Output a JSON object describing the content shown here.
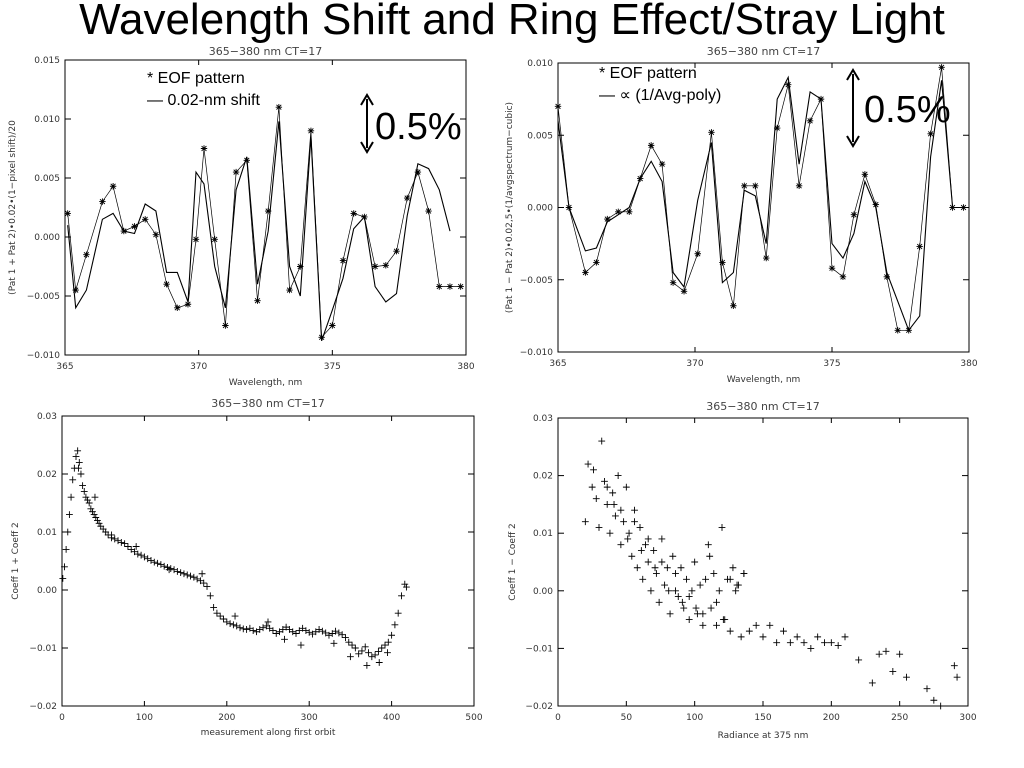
{
  "slide": {
    "title": "Wavelength Shift and Ring Effect/Stray Light"
  },
  "chart_data": [
    {
      "type": "line",
      "title": "365−380 nm CT=17",
      "xlabel": "Wavelength, nm",
      "ylabel": "(Pat 1 + Pat 2)•0.02•(1−pixel shift)/20",
      "xlim": [
        365,
        380
      ],
      "ylim": [
        -0.01,
        0.015
      ],
      "xticks": [
        365,
        370,
        375,
        380
      ],
      "yticks": [
        -0.01,
        -0.005,
        0,
        0.005,
        0.01,
        0.015
      ],
      "xtick_labels": [
        "365",
        "370",
        "375",
        "380"
      ],
      "ytick_labels": [
        "−0.010",
        "−0.005",
        "0.000",
        "0.005",
        "0.010",
        "0.015"
      ],
      "annotations": [
        "* EOF pattern",
        "— 0.02-nm shift"
      ],
      "scale_label": "0.5%",
      "series": [
        {
          "name": "EOF pattern",
          "marker": "asterisk",
          "x": [
            365.1,
            365.4,
            365.8,
            366.4,
            366.8,
            367.2,
            367.6,
            368.0,
            368.4,
            368.8,
            369.2,
            369.6,
            369.9,
            370.2,
            370.6,
            371.0,
            371.4,
            371.8,
            372.2,
            372.6,
            373.0,
            373.4,
            373.8,
            374.2,
            374.6,
            375.0,
            375.4,
            375.8,
            376.2,
            376.6,
            377.0,
            377.4,
            377.8,
            378.2,
            378.6,
            379.0,
            379.4,
            379.8
          ],
          "y": [
            0.002,
            -0.0045,
            -0.0015,
            0.003,
            0.0043,
            0.0005,
            0.0009,
            0.0015,
            0.0002,
            -0.004,
            -0.006,
            -0.0057,
            -0.0002,
            0.0075,
            -0.0002,
            -0.0075,
            0.0055,
            0.0065,
            -0.0054,
            0.0022,
            0.011,
            -0.0045,
            -0.0025,
            0.009,
            -0.0085,
            -0.0075,
            -0.002,
            0.002,
            0.0017,
            -0.0025,
            -0.0024,
            -0.0012,
            0.0033,
            0.0055,
            0.0022,
            -0.0042,
            -0.0042,
            -0.0042
          ]
        },
        {
          "name": "0.02-nm shift",
          "marker": "none",
          "x": [
            365.1,
            365.4,
            365.8,
            366.4,
            366.8,
            367.2,
            367.6,
            368.0,
            368.4,
            368.8,
            369.2,
            369.6,
            369.9,
            370.2,
            370.6,
            371.0,
            371.4,
            371.8,
            372.2,
            372.6,
            373.0,
            373.4,
            373.8,
            374.2,
            374.6,
            375.0,
            375.4,
            375.8,
            376.2,
            376.6,
            377.0,
            377.4,
            377.8,
            378.2,
            378.6,
            379.0,
            379.4
          ],
          "y": [
            0.001,
            -0.006,
            -0.0045,
            0.0015,
            0.002,
            0.0005,
            0.0003,
            0.0028,
            0.0022,
            -0.003,
            -0.003,
            -0.0055,
            0.0055,
            0.0045,
            -0.0025,
            -0.006,
            0.004,
            0.0068,
            -0.004,
            0.0005,
            0.0098,
            -0.0025,
            -0.005,
            0.0085,
            -0.0088,
            -0.0062,
            -0.0035,
            0.0007,
            0.0017,
            -0.0042,
            -0.0055,
            -0.0048,
            0.0018,
            0.0062,
            0.0058,
            0.004,
            0.0005
          ]
        }
      ]
    },
    {
      "type": "line",
      "title": "365−380 nm CT=17",
      "xlabel": "Wavelength, nm",
      "ylabel": "(Pat 1 − Pat 2)•0.02,5•(1/avgspectrum−cubic)",
      "xlim": [
        365,
        380
      ],
      "ylim": [
        -0.01,
        0.01
      ],
      "xticks": [
        365,
        370,
        375,
        380
      ],
      "yticks": [
        -0.01,
        -0.005,
        0,
        0.005,
        0.01
      ],
      "xtick_labels": [
        "365",
        "370",
        "375",
        "380"
      ],
      "ytick_labels": [
        "−0.010",
        "−0.005",
        "0.000",
        "0.005",
        "0.010"
      ],
      "annotations": [
        "* EOF pattern",
        "— ∝ (1/Avg-poly)"
      ],
      "scale_label": "0.5%",
      "series": [
        {
          "name": "EOF pattern",
          "marker": "asterisk",
          "x": [
            365.0,
            365.4,
            366.0,
            366.4,
            366.8,
            367.2,
            367.6,
            368.0,
            368.4,
            368.8,
            369.2,
            369.6,
            370.1,
            370.6,
            371.0,
            371.4,
            371.8,
            372.2,
            372.6,
            373.0,
            373.4,
            373.8,
            374.2,
            374.6,
            375.0,
            375.4,
            375.8,
            376.2,
            376.6,
            377.0,
            377.4,
            377.8,
            378.2,
            378.6,
            379.0,
            379.4,
            379.8
          ],
          "y": [
            0.007,
            0.0,
            -0.0045,
            -0.0038,
            -0.0008,
            -0.0003,
            -0.0003,
            0.002,
            0.0043,
            0.003,
            -0.0052,
            -0.0058,
            -0.0032,
            0.0052,
            -0.0038,
            -0.0068,
            0.0015,
            0.0015,
            -0.0035,
            0.0055,
            0.0085,
            0.0015,
            0.006,
            0.0075,
            -0.0042,
            -0.0048,
            -0.0005,
            0.0023,
            0.0002,
            -0.0048,
            -0.0085,
            -0.0085,
            -0.0027,
            0.0051,
            0.0097,
            0.0,
            0.0
          ]
        },
        {
          "name": "∝ (1/Avg-poly)",
          "marker": "none",
          "x": [
            365.0,
            365.4,
            366.0,
            366.4,
            366.8,
            367.2,
            367.6,
            368.0,
            368.4,
            368.8,
            369.2,
            369.6,
            370.1,
            370.6,
            371.0,
            371.4,
            371.8,
            372.2,
            372.6,
            373.0,
            373.4,
            373.8,
            374.2,
            374.6,
            375.0,
            375.4,
            375.8,
            376.2,
            376.6,
            377.0,
            377.4,
            377.8,
            378.2,
            378.6,
            379.0,
            379.4,
            379.8
          ],
          "y": [
            0.006,
            0.0,
            -0.003,
            -0.0028,
            -0.001,
            -0.0005,
            0.0,
            0.002,
            0.0032,
            0.0018,
            -0.0045,
            -0.0055,
            0.0005,
            0.0045,
            -0.0052,
            -0.0045,
            0.0012,
            0.0008,
            -0.0025,
            0.0075,
            0.009,
            0.003,
            0.008,
            0.0075,
            -0.0025,
            -0.0035,
            -0.0018,
            0.0018,
            0.0,
            -0.0045,
            -0.0065,
            -0.0085,
            -0.0075,
            0.0035,
            0.0088,
            0.0,
            0.0
          ]
        }
      ]
    },
    {
      "type": "scatter",
      "title": "365−380 nm CT=17",
      "xlabel": "measurement along first orbit",
      "ylabel": "Coeff 1 + Coeff 2",
      "xlim": [
        0,
        500
      ],
      "ylim": [
        -0.02,
        0.03
      ],
      "xticks": [
        0,
        100,
        200,
        300,
        400,
        500
      ],
      "yticks": [
        -0.02,
        -0.01,
        0,
        0.01,
        0.02,
        0.03
      ],
      "xtick_labels": [
        "0",
        "100",
        "200",
        "300",
        "400",
        "500"
      ],
      "ytick_labels": [
        "−0.02",
        "−0.01",
        "0.00",
        "0.01",
        "0.02",
        "0.03"
      ],
      "series": [
        {
          "name": "",
          "marker": "plus",
          "x": [
            1,
            3,
            5,
            7,
            9,
            11,
            13,
            15,
            17,
            19,
            21,
            23,
            25,
            27,
            29,
            31,
            33,
            35,
            37,
            39,
            41,
            43,
            45,
            47,
            50,
            53,
            56,
            60,
            64,
            68,
            72,
            76,
            80,
            84,
            88,
            92,
            96,
            100,
            104,
            108,
            112,
            116,
            120,
            124,
            128,
            132,
            136,
            140,
            144,
            148,
            152,
            156,
            160,
            164,
            168,
            172,
            176,
            180,
            184,
            188,
            192,
            196,
            200,
            204,
            208,
            212,
            216,
            220,
            224,
            228,
            232,
            236,
            240,
            244,
            248,
            252,
            256,
            260,
            264,
            268,
            272,
            276,
            280,
            284,
            288,
            292,
            296,
            300,
            304,
            308,
            312,
            316,
            320,
            324,
            328,
            332,
            336,
            340,
            344,
            348,
            352,
            356,
            360,
            364,
            368,
            372,
            376,
            380,
            384,
            388,
            392,
            396,
            400,
            404,
            408,
            412,
            416,
            418,
            20,
            40,
            60,
            90,
            130,
            170,
            210,
            250,
            270,
            290,
            330,
            350,
            370,
            385,
            395
          ],
          "y": [
            0.002,
            0.004,
            0.007,
            0.01,
            0.013,
            0.016,
            0.019,
            0.021,
            0.023,
            0.024,
            0.022,
            0.02,
            0.018,
            0.017,
            0.016,
            0.0155,
            0.015,
            0.014,
            0.0135,
            0.013,
            0.0125,
            0.012,
            0.0115,
            0.011,
            0.0105,
            0.01,
            0.0095,
            0.009,
            0.0088,
            0.0085,
            0.0082,
            0.008,
            0.0075,
            0.007,
            0.0066,
            0.0062,
            0.006,
            0.0057,
            0.0054,
            0.0051,
            0.0048,
            0.0046,
            0.0044,
            0.0041,
            0.0039,
            0.0037,
            0.0035,
            0.0032,
            0.003,
            0.0028,
            0.0026,
            0.0024,
            0.0022,
            0.0019,
            0.0016,
            0.0012,
            0.0006,
            -0.001,
            -0.003,
            -0.004,
            -0.0045,
            -0.005,
            -0.0055,
            -0.0058,
            -0.006,
            -0.0062,
            -0.0065,
            -0.0067,
            -0.0068,
            -0.0066,
            -0.007,
            -0.0072,
            -0.0068,
            -0.0065,
            -0.0062,
            -0.0066,
            -0.007,
            -0.0075,
            -0.0072,
            -0.0068,
            -0.0064,
            -0.0068,
            -0.0072,
            -0.0075,
            -0.007,
            -0.0066,
            -0.007,
            -0.0073,
            -0.0076,
            -0.0072,
            -0.0068,
            -0.0071,
            -0.0074,
            -0.0078,
            -0.0075,
            -0.0071,
            -0.0074,
            -0.0077,
            -0.0082,
            -0.009,
            -0.0095,
            -0.01,
            -0.011,
            -0.0105,
            -0.0098,
            -0.0108,
            -0.0115,
            -0.0112,
            -0.0106,
            -0.01,
            -0.0095,
            -0.009,
            -0.0078,
            -0.006,
            -0.004,
            -0.001,
            0.001,
            0.0005,
            0.021,
            0.016,
            0.0095,
            0.0075,
            0.0035,
            0.0028,
            -0.0045,
            -0.0055,
            -0.0085,
            -0.0095,
            -0.0092,
            -0.0115,
            -0.013,
            -0.0125,
            -0.0108
          ]
        }
      ]
    },
    {
      "type": "scatter",
      "title": "365−380 nm CT=17",
      "xlabel": "Radiance at 375 nm",
      "ylabel": "Coeff 1 − Coeff 2",
      "xlim": [
        0,
        300
      ],
      "ylim": [
        -0.02,
        0.03
      ],
      "xticks": [
        0,
        50,
        100,
        150,
        200,
        250,
        300
      ],
      "yticks": [
        -0.02,
        -0.01,
        0,
        0.01,
        0.02,
        0.03
      ],
      "xtick_labels": [
        "0",
        "50",
        "100",
        "150",
        "200",
        "250",
        "300"
      ],
      "ytick_labels": [
        "−0.02",
        "−0.01",
        "0.00",
        "0.01",
        "0.02",
        "0.03"
      ],
      "series": [
        {
          "name": "",
          "marker": "plus",
          "x": [
            20,
            22,
            25,
            28,
            30,
            32,
            34,
            36,
            38,
            40,
            42,
            44,
            46,
            48,
            50,
            52,
            54,
            56,
            58,
            60,
            62,
            64,
            66,
            68,
            70,
            72,
            74,
            76,
            78,
            80,
            82,
            84,
            86,
            88,
            90,
            92,
            94,
            96,
            98,
            100,
            102,
            104,
            106,
            108,
            110,
            112,
            114,
            116,
            118,
            120,
            122,
            124,
            126,
            128,
            130,
            132,
            134,
            136,
            140,
            145,
            150,
            155,
            160,
            165,
            170,
            175,
            180,
            185,
            190,
            195,
            200,
            205,
            210,
            220,
            230,
            235,
            240,
            245,
            250,
            255,
            270,
            275,
            280,
            290,
            292,
            26,
            36,
            46,
            56,
            66,
            76,
            86,
            96,
            106,
            116,
            126,
            136,
            41,
            51,
            61,
            71,
            81,
            91,
            101,
            111,
            121,
            131
          ],
          "y": [
            0.012,
            0.022,
            0.018,
            0.016,
            0.011,
            0.026,
            0.019,
            0.015,
            0.01,
            0.017,
            0.013,
            0.02,
            0.008,
            0.012,
            0.018,
            0.01,
            0.006,
            0.014,
            0.004,
            0.011,
            0.002,
            0.008,
            0.005,
            0.0,
            0.007,
            0.003,
            -0.002,
            0.009,
            0.001,
            0.004,
            -0.004,
            0.006,
            0.0,
            -0.001,
            0.004,
            -0.003,
            0.002,
            -0.005,
            0.0,
            0.005,
            -0.004,
            0.001,
            -0.006,
            0.002,
            0.008,
            -0.003,
            0.003,
            -0.006,
            0.0,
            0.011,
            -0.005,
            0.002,
            -0.007,
            0.004,
            0.0,
            0.001,
            -0.008,
            0.003,
            -0.007,
            -0.006,
            -0.008,
            -0.006,
            -0.009,
            -0.007,
            -0.009,
            -0.008,
            -0.009,
            -0.01,
            -0.008,
            -0.009,
            -0.009,
            -0.0095,
            -0.008,
            -0.012,
            -0.016,
            -0.011,
            -0.0105,
            -0.014,
            -0.011,
            -0.015,
            -0.017,
            -0.019,
            -0.02,
            -0.013,
            -0.015,
            0.021,
            0.018,
            0.014,
            0.012,
            0.009,
            0.005,
            0.003,
            -0.001,
            -0.004,
            -0.002,
            0.002,
            0.003,
            0.015,
            0.009,
            0.007,
            0.004,
            0.0,
            -0.002,
            -0.003,
            0.006,
            -0.005,
            0.001
          ]
        }
      ]
    }
  ]
}
